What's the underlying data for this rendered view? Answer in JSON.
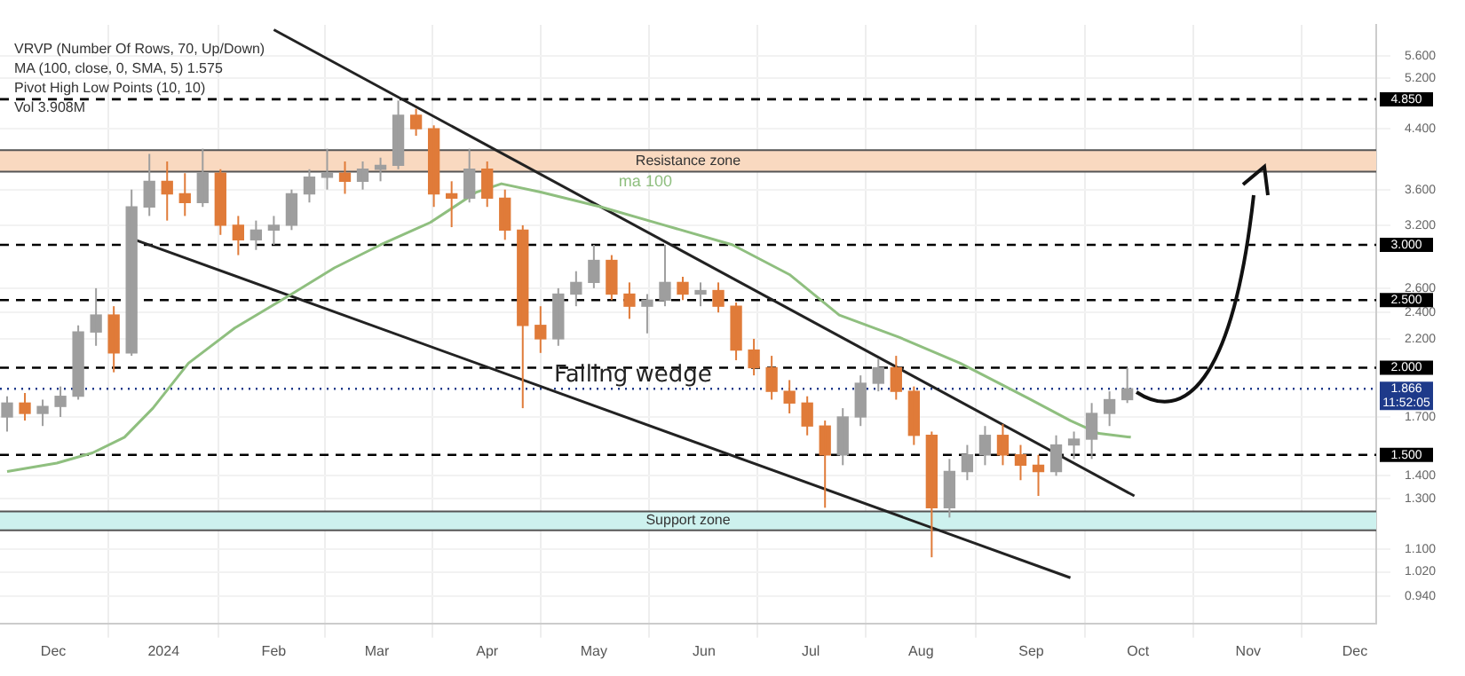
{
  "chart_data": {
    "type": "candlestick",
    "x": [
      "2023-11-18",
      "2023-11-23",
      "2023-11-28",
      "2023-12-03",
      "2023-12-08",
      "2023-12-13",
      "2023-12-18",
      "2023-12-23",
      "2023-12-28",
      "2024-01-02",
      "2024-01-07",
      "2024-01-12",
      "2024-01-17",
      "2024-01-22",
      "2024-01-27",
      "2024-02-01",
      "2024-02-06",
      "2024-02-11",
      "2024-02-16",
      "2024-02-21",
      "2024-02-26",
      "2024-03-02",
      "2024-03-07",
      "2024-03-12",
      "2024-03-17",
      "2024-03-22",
      "2024-03-27",
      "2024-04-01",
      "2024-04-06",
      "2024-04-11",
      "2024-04-16",
      "2024-04-21",
      "2024-04-26",
      "2024-05-01",
      "2024-05-06",
      "2024-05-11",
      "2024-05-16",
      "2024-05-21",
      "2024-05-26",
      "2024-05-31",
      "2024-06-05",
      "2024-06-10",
      "2024-06-15",
      "2024-06-20",
      "2024-06-25",
      "2024-06-30",
      "2024-07-05",
      "2024-07-10",
      "2024-07-15",
      "2024-07-20",
      "2024-07-25",
      "2024-07-30",
      "2024-08-04",
      "2024-08-09",
      "2024-08-14",
      "2024-08-19",
      "2024-08-24",
      "2024-08-29",
      "2024-09-03",
      "2024-09-08",
      "2024-09-13",
      "2024-09-18",
      "2024-09-23",
      "2024-09-28"
    ],
    "ohlc": [
      [
        1.7,
        1.82,
        1.62,
        1.78
      ],
      [
        1.78,
        1.84,
        1.68,
        1.72
      ],
      [
        1.72,
        1.8,
        1.65,
        1.76
      ],
      [
        1.76,
        1.88,
        1.7,
        1.82
      ],
      [
        1.82,
        2.3,
        1.8,
        2.25
      ],
      [
        2.25,
        2.6,
        2.15,
        2.38
      ],
      [
        2.38,
        2.45,
        1.97,
        2.1
      ],
      [
        2.1,
        3.6,
        2.08,
        3.4
      ],
      [
        3.4,
        4.05,
        3.3,
        3.7
      ],
      [
        3.7,
        3.95,
        3.25,
        3.55
      ],
      [
        3.55,
        3.8,
        3.3,
        3.45
      ],
      [
        3.45,
        4.12,
        3.4,
        3.8
      ],
      [
        3.8,
        3.85,
        3.1,
        3.2
      ],
      [
        3.2,
        3.3,
        2.9,
        3.05
      ],
      [
        3.05,
        3.25,
        2.95,
        3.15
      ],
      [
        3.15,
        3.3,
        3.0,
        3.2
      ],
      [
        3.2,
        3.6,
        3.15,
        3.55
      ],
      [
        3.55,
        3.85,
        3.45,
        3.75
      ],
      [
        3.75,
        4.12,
        3.6,
        3.8
      ],
      [
        3.8,
        3.95,
        3.55,
        3.7
      ],
      [
        3.7,
        3.95,
        3.6,
        3.85
      ],
      [
        3.85,
        4.0,
        3.7,
        3.9
      ],
      [
        3.9,
        4.83,
        3.85,
        4.6
      ],
      [
        4.6,
        4.7,
        4.3,
        4.4
      ],
      [
        4.4,
        4.45,
        3.4,
        3.55
      ],
      [
        3.55,
        3.7,
        3.18,
        3.5
      ],
      [
        3.5,
        4.12,
        3.45,
        3.85
      ],
      [
        3.85,
        3.95,
        3.4,
        3.5
      ],
      [
        3.5,
        3.6,
        3.05,
        3.15
      ],
      [
        3.15,
        3.2,
        1.75,
        2.3
      ],
      [
        2.3,
        2.45,
        2.1,
        2.2
      ],
      [
        2.2,
        2.6,
        2.15,
        2.55
      ],
      [
        2.55,
        2.75,
        2.45,
        2.65
      ],
      [
        2.65,
        3.0,
        2.6,
        2.85
      ],
      [
        2.85,
        2.9,
        2.5,
        2.55
      ],
      [
        2.55,
        2.65,
        2.35,
        2.45
      ],
      [
        2.45,
        2.55,
        2.24,
        2.5
      ],
      [
        2.5,
        3.0,
        2.45,
        2.65
      ],
      [
        2.65,
        2.7,
        2.5,
        2.55
      ],
      [
        2.55,
        2.65,
        2.45,
        2.58
      ],
      [
        2.58,
        2.65,
        2.4,
        2.45
      ],
      [
        2.45,
        2.48,
        2.05,
        2.12
      ],
      [
        2.12,
        2.2,
        1.95,
        2.0
      ],
      [
        2.0,
        2.08,
        1.8,
        1.85
      ],
      [
        1.85,
        1.92,
        1.72,
        1.78
      ],
      [
        1.78,
        1.82,
        1.6,
        1.65
      ],
      [
        1.65,
        1.68,
        1.26,
        1.5
      ],
      [
        1.5,
        1.75,
        1.45,
        1.7
      ],
      [
        1.7,
        1.95,
        1.65,
        1.9
      ],
      [
        1.9,
        2.06,
        1.85,
        2.0
      ],
      [
        2.0,
        2.08,
        1.8,
        1.85
      ],
      [
        1.85,
        1.88,
        1.55,
        1.6
      ],
      [
        1.6,
        1.62,
        1.07,
        1.26
      ],
      [
        1.26,
        1.48,
        1.22,
        1.42
      ],
      [
        1.42,
        1.55,
        1.38,
        1.5
      ],
      [
        1.5,
        1.65,
        1.45,
        1.6
      ],
      [
        1.6,
        1.66,
        1.45,
        1.5
      ],
      [
        1.5,
        1.55,
        1.38,
        1.45
      ],
      [
        1.45,
        1.5,
        1.31,
        1.42
      ],
      [
        1.42,
        1.6,
        1.4,
        1.55
      ],
      [
        1.55,
        1.62,
        1.48,
        1.58
      ],
      [
        1.58,
        1.78,
        1.48,
        1.72
      ],
      [
        1.72,
        1.85,
        1.65,
        1.8
      ],
      [
        1.8,
        2.0,
        1.78,
        1.866
      ]
    ],
    "colors": [
      "#9e9e9e",
      "#e07b39",
      "#9e9e9e",
      "#9e9e9e",
      "#9e9e9e",
      "#9e9e9e",
      "#e07b39",
      "#9e9e9e",
      "#9e9e9e",
      "#e07b39",
      "#e07b39",
      "#9e9e9e",
      "#e07b39",
      "#e07b39",
      "#9e9e9e",
      "#9e9e9e",
      "#9e9e9e",
      "#9e9e9e",
      "#9e9e9e",
      "#e07b39",
      "#9e9e9e",
      "#9e9e9e",
      "#9e9e9e",
      "#e07b39",
      "#e07b39",
      "#e07b39",
      "#9e9e9e",
      "#e07b39",
      "#e07b39",
      "#e07b39",
      "#e07b39",
      "#9e9e9e",
      "#9e9e9e",
      "#9e9e9e",
      "#e07b39",
      "#e07b39",
      "#9e9e9e",
      "#9e9e9e",
      "#e07b39",
      "#9e9e9e",
      "#e07b39",
      "#e07b39",
      "#e07b39",
      "#e07b39",
      "#e07b39",
      "#e07b39",
      "#e07b39",
      "#9e9e9e",
      "#9e9e9e",
      "#9e9e9e",
      "#e07b39",
      "#e07b39",
      "#e07b39",
      "#9e9e9e",
      "#9e9e9e",
      "#9e9e9e",
      "#e07b39",
      "#e07b39",
      "#e07b39",
      "#9e9e9e",
      "#9e9e9e",
      "#9e9e9e",
      "#9e9e9e",
      "#9e9e9e"
    ],
    "series": [
      {
        "type": "line",
        "name": "ma 100",
        "color": "#8fbf7f",
        "x": [
          "2023-11-18",
          "2023-12-02",
          "2023-12-12",
          "2023-12-21",
          "2023-12-29",
          "2024-01-08",
          "2024-01-21",
          "2024-02-06",
          "2024-02-18",
          "2024-03-02",
          "2024-03-16",
          "2024-03-29",
          "2024-04-05",
          "2024-04-16",
          "2024-05-03",
          "2024-05-20",
          "2024-06-09",
          "2024-06-25",
          "2024-07-09",
          "2024-07-26",
          "2024-08-12",
          "2024-08-31",
          "2024-09-12",
          "2024-09-20",
          "2024-09-29"
        ],
        "values": [
          1.42,
          1.46,
          1.51,
          1.59,
          1.75,
          2.03,
          2.28,
          2.55,
          2.78,
          3.0,
          3.23,
          3.57,
          3.67,
          3.57,
          3.4,
          3.21,
          3.0,
          2.72,
          2.38,
          2.21,
          2.03,
          1.81,
          1.68,
          1.61,
          1.59
        ]
      },
      {
        "type": "line",
        "color": "#222222",
        "x": [
          "2024-02-01",
          "2024-09-30"
        ],
        "values": [
          6.1,
          1.31
        ]
      },
      {
        "type": "line",
        "color": "#222222",
        "x": [
          "2023-12-24",
          "2024-09-12"
        ],
        "values": [
          3.05,
          1.0
        ]
      }
    ],
    "xlim": [
      "2023-11-16",
      "2024-12-07"
    ],
    "xticks": [
      {
        "value": "2023-12-01",
        "label": "Dec"
      },
      {
        "value": "2024-01-01",
        "label": "2024"
      },
      {
        "value": "2024-02-01",
        "label": "Feb"
      },
      {
        "value": "2024-03-01",
        "label": "Mar"
      },
      {
        "value": "2024-04-01",
        "label": "Apr"
      },
      {
        "value": "2024-05-01",
        "label": "May"
      },
      {
        "value": "2024-06-01",
        "label": "Jun"
      },
      {
        "value": "2024-07-01",
        "label": "Jul"
      },
      {
        "value": "2024-08-01",
        "label": "Aug"
      },
      {
        "value": "2024-09-01",
        "label": "Sep"
      },
      {
        "value": "2024-10-01",
        "label": "Oct"
      },
      {
        "value": "2024-11-01",
        "label": "Nov"
      },
      {
        "value": "2024-12-01",
        "label": "Dec"
      }
    ],
    "ylim": [
      0.86,
      6.2
    ],
    "yticks": [
      {
        "value": 5.6,
        "label": "5.600"
      },
      {
        "value": 5.2,
        "label": "5.200"
      },
      {
        "value": 4.4,
        "label": "4.400"
      },
      {
        "value": 3.6,
        "label": "3.600"
      },
      {
        "value": 3.2,
        "label": "3.200"
      },
      {
        "value": 2.6,
        "label": "2.600"
      },
      {
        "value": 2.4,
        "label": "2.400"
      },
      {
        "value": 2.2,
        "label": "2.200"
      },
      {
        "value": 1.7,
        "label": "1.700"
      },
      {
        "value": 1.4,
        "label": "1.400"
      },
      {
        "value": 1.3,
        "label": "1.300"
      },
      {
        "value": 1.1,
        "label": "1.100"
      },
      {
        "value": 1.02,
        "label": "1.020"
      },
      {
        "value": 0.94,
        "label": "0.940"
      }
    ],
    "log": "y",
    "grid": true,
    "ref_lines": [
      {
        "axis": "y",
        "value": 4.85,
        "label": "4.850",
        "color": "#000000",
        "line_style": "dashed"
      },
      {
        "axis": "y",
        "value": 3.0,
        "label": "3.000",
        "color": "#000000",
        "line_style": "dashed"
      },
      {
        "axis": "y",
        "value": 2.5,
        "label": "2.500",
        "color": "#000000",
        "line_style": "dashed"
      },
      {
        "axis": "y",
        "value": 2.0,
        "label": "2.000",
        "color": "#000000",
        "line_style": "dashed"
      },
      {
        "axis": "y",
        "value": 1.5,
        "label": "1.500",
        "color": "#000000",
        "line_style": "dashed"
      },
      {
        "axis": "y",
        "value": 1.866,
        "label": "1.866\n11:52:05",
        "color": "#1e3a8a",
        "line_style": "dotted"
      }
    ],
    "bands": [
      {
        "axis": "y",
        "from": 3.82,
        "to": 4.1,
        "label": "Resistance zone",
        "color": "#f9d9c0"
      },
      {
        "axis": "y",
        "from": 1.17,
        "to": 1.245,
        "label": "Support zone",
        "color": "#cdf1ee"
      }
    ],
    "annotations": [
      "VRVP (Number Of Rows, 70, Up/Down)",
      "MA (100, close, 0, SMA, 5) 1.575",
      "Pivot High Low Points (10, 10)",
      "Vol 3.908M",
      {
        "text": "Falling wedge",
        "x": "2024-05-12",
        "y": 1.95
      }
    ]
  }
}
